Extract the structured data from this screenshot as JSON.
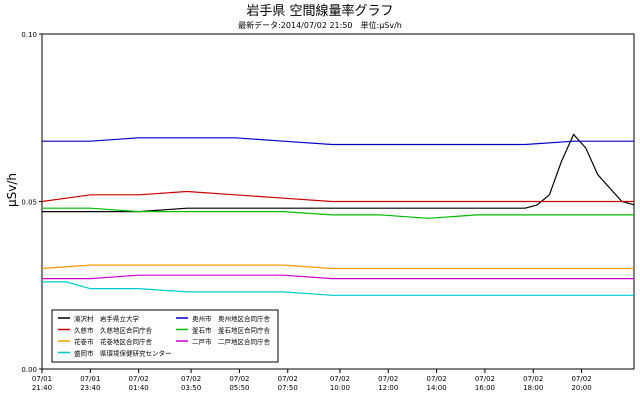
{
  "chart_data": {
    "type": "line",
    "title": "岩手県 空間線量率グラフ",
    "subtitle": "最新データ:2014/07/02 21:50　単位:μSv/h",
    "xlabel": "",
    "ylabel": "μSv/h",
    "ylim": [
      0,
      0.1
    ],
    "y_ticks": [
      "0.00",
      "0.05",
      "0.10"
    ],
    "grid": "off",
    "legend_placement": "bottom-left",
    "x_range_hours": [
      0,
      24.5
    ],
    "x_ticks": [
      {
        "t": 0.0,
        "label": [
          "07/01",
          "21:40"
        ]
      },
      {
        "t": 2.0,
        "label": [
          "07/01",
          "23:40"
        ]
      },
      {
        "t": 4.0,
        "label": [
          "07/02",
          "01:40"
        ]
      },
      {
        "t": 6.17,
        "label": [
          "07/02",
          "03:50"
        ]
      },
      {
        "t": 8.17,
        "label": [
          "07/02",
          "05:50"
        ]
      },
      {
        "t": 10.17,
        "label": [
          "07/02",
          "07:50"
        ]
      },
      {
        "t": 12.33,
        "label": [
          "07/02",
          "10:00"
        ]
      },
      {
        "t": 14.33,
        "label": [
          "07/02",
          "12:00"
        ]
      },
      {
        "t": 16.33,
        "label": [
          "07/02",
          "14:00"
        ]
      },
      {
        "t": 18.33,
        "label": [
          "07/02",
          "16:00"
        ]
      },
      {
        "t": 20.33,
        "label": [
          "07/02",
          "18:00"
        ]
      },
      {
        "t": 22.33,
        "label": [
          "07/02",
          "20:00"
        ]
      }
    ],
    "series": [
      {
        "name": "滝沢村　岩手県立大学",
        "color": "#000000",
        "points": [
          [
            0,
            0.047
          ],
          [
            1,
            0.047
          ],
          [
            2,
            0.047
          ],
          [
            3,
            0.047
          ],
          [
            4,
            0.047
          ],
          [
            6,
            0.048
          ],
          [
            8,
            0.048
          ],
          [
            10,
            0.048
          ],
          [
            12,
            0.048
          ],
          [
            14,
            0.048
          ],
          [
            16,
            0.048
          ],
          [
            18,
            0.048
          ],
          [
            19,
            0.048
          ],
          [
            20,
            0.048
          ],
          [
            20.5,
            0.049
          ],
          [
            21,
            0.052
          ],
          [
            21.5,
            0.062
          ],
          [
            22,
            0.07
          ],
          [
            22.5,
            0.066
          ],
          [
            23,
            0.058
          ],
          [
            23.5,
            0.054
          ],
          [
            24,
            0.05
          ],
          [
            24.5,
            0.049
          ]
        ]
      },
      {
        "name": "奥州市　奥州地区合同庁舎",
        "color": "#0000cc",
        "points": [
          [
            0,
            0.068
          ],
          [
            1,
            0.068
          ],
          [
            2,
            0.068
          ],
          [
            4,
            0.069
          ],
          [
            6,
            0.069
          ],
          [
            8,
            0.069
          ],
          [
            10,
            0.068
          ],
          [
            12,
            0.067
          ],
          [
            14,
            0.067
          ],
          [
            16,
            0.067
          ],
          [
            18,
            0.067
          ],
          [
            20,
            0.067
          ],
          [
            22,
            0.068
          ],
          [
            24.5,
            0.068
          ]
        ]
      },
      {
        "name": "久慈市　久慈地区合同庁舎",
        "color": "#cc0000",
        "points": [
          [
            0,
            0.05
          ],
          [
            1,
            0.051
          ],
          [
            2,
            0.052
          ],
          [
            4,
            0.052
          ],
          [
            6,
            0.053
          ],
          [
            8,
            0.052
          ],
          [
            10,
            0.051
          ],
          [
            12,
            0.05
          ],
          [
            14,
            0.05
          ],
          [
            16,
            0.05
          ],
          [
            18,
            0.05
          ],
          [
            20,
            0.05
          ],
          [
            22,
            0.05
          ],
          [
            24.5,
            0.05
          ]
        ]
      },
      {
        "name": "釜石市　釜石地区合同庁舎",
        "color": "#00bb00",
        "points": [
          [
            0,
            0.048
          ],
          [
            2,
            0.048
          ],
          [
            4,
            0.047
          ],
          [
            6,
            0.047
          ],
          [
            8,
            0.047
          ],
          [
            10,
            0.047
          ],
          [
            12,
            0.046
          ],
          [
            14,
            0.046
          ],
          [
            16,
            0.045
          ],
          [
            18,
            0.046
          ],
          [
            20,
            0.046
          ],
          [
            22,
            0.046
          ],
          [
            24.5,
            0.046
          ]
        ]
      },
      {
        "name": "花巻市　花巻地区合同庁舎",
        "color": "#ff9900",
        "points": [
          [
            0,
            0.03
          ],
          [
            2,
            0.031
          ],
          [
            4,
            0.031
          ],
          [
            6,
            0.031
          ],
          [
            8,
            0.031
          ],
          [
            10,
            0.031
          ],
          [
            12,
            0.03
          ],
          [
            14,
            0.03
          ],
          [
            16,
            0.03
          ],
          [
            18,
            0.03
          ],
          [
            20,
            0.03
          ],
          [
            22,
            0.03
          ],
          [
            24.5,
            0.03
          ]
        ]
      },
      {
        "name": "二戸市　二戸地区合同庁舎",
        "color": "#cc00cc",
        "points": [
          [
            0,
            0.027
          ],
          [
            2,
            0.027
          ],
          [
            4,
            0.028
          ],
          [
            6,
            0.028
          ],
          [
            8,
            0.028
          ],
          [
            10,
            0.028
          ],
          [
            12,
            0.027
          ],
          [
            14,
            0.027
          ],
          [
            16,
            0.027
          ],
          [
            18,
            0.027
          ],
          [
            20,
            0.027
          ],
          [
            22,
            0.027
          ],
          [
            24.5,
            0.027
          ]
        ]
      },
      {
        "name": "盛岡市　県環境保健研究センター",
        "color": "#00cccc",
        "points": [
          [
            0,
            0.026
          ],
          [
            1,
            0.026
          ],
          [
            2,
            0.024
          ],
          [
            4,
            0.024
          ],
          [
            6,
            0.023
          ],
          [
            8,
            0.023
          ],
          [
            10,
            0.023
          ],
          [
            12,
            0.022
          ],
          [
            14,
            0.022
          ],
          [
            16,
            0.022
          ],
          [
            18,
            0.022
          ],
          [
            20,
            0.022
          ],
          [
            22,
            0.022
          ],
          [
            24.5,
            0.022
          ]
        ]
      }
    ]
  }
}
